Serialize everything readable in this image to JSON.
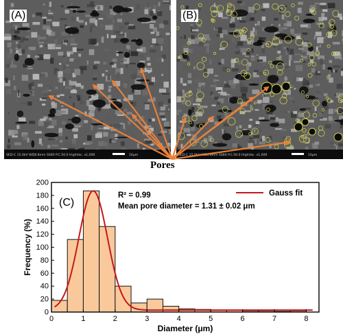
{
  "panels": {
    "a_label": "(A)",
    "b_label": "(B)",
    "sem_info_a": "SED-C  15.0kV  WD8.8mm  SS60  P.C.50.0  HighVac.  x1,000",
    "sem_info_b": "SED-C  15.0kV  WD8.8mm  SS60  P.C.50.0  HighVac.  x1,000",
    "scale_a": "10μm",
    "scale_b": "10μm",
    "pores_label": "Pores"
  },
  "colors": {
    "arrow": "#e8803a",
    "bar_fill": "#f9c99c",
    "bar_stroke": "#111111",
    "gauss_line": "#c4161c",
    "pore_outline": "#d8d84a"
  },
  "chart_data": {
    "type": "bar",
    "panel_label": "(C)",
    "xlabel": "Diameter (μm)",
    "ylabel": "Frequency (%)",
    "xlim": [
      0,
      8.4
    ],
    "ylim": [
      0,
      200
    ],
    "xticks": [
      0,
      1,
      2,
      3,
      4,
      5,
      6,
      7,
      8
    ],
    "yticks": [
      0,
      20,
      40,
      60,
      80,
      100,
      120,
      140,
      160,
      180,
      200
    ],
    "bin_width": 0.5,
    "bins": [
      {
        "x": 0.25,
        "value": 18
      },
      {
        "x": 0.75,
        "value": 112
      },
      {
        "x": 1.25,
        "value": 187
      },
      {
        "x": 1.75,
        "value": 132
      },
      {
        "x": 2.25,
        "value": 40
      },
      {
        "x": 2.75,
        "value": 14
      },
      {
        "x": 3.25,
        "value": 20
      },
      {
        "x": 3.75,
        "value": 9
      },
      {
        "x": 4.25,
        "value": 5
      },
      {
        "x": 4.75,
        "value": 4
      },
      {
        "x": 5.25,
        "value": 3
      },
      {
        "x": 5.75,
        "value": 3
      },
      {
        "x": 6.25,
        "value": 2
      },
      {
        "x": 6.75,
        "value": 2
      },
      {
        "x": 7.25,
        "value": 1
      },
      {
        "x": 7.75,
        "value": 2
      }
    ],
    "fit": {
      "name": "Gauss fit",
      "mean": 1.31,
      "sigma": 0.45,
      "amplitude": 187,
      "baseline": 3
    },
    "legend": {
      "label": "Gauss fit",
      "position": "top-right"
    },
    "annotations": {
      "r2": "R² = 0.99",
      "mean": "Mean pore diameter = 1.31 ± 0.02 μm"
    }
  }
}
